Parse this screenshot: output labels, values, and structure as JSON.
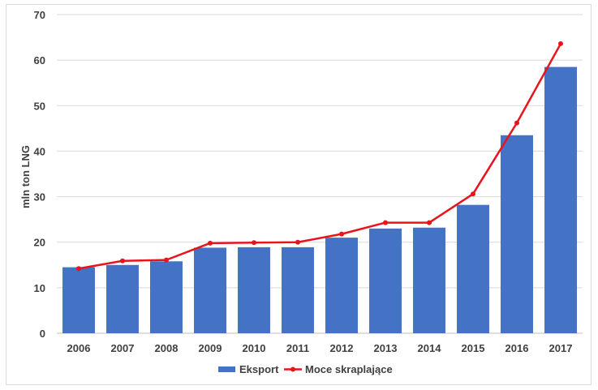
{
  "chart_data": {
    "type": "bar",
    "title": "",
    "xlabel": "",
    "ylabel": "mln ton LNG",
    "ylim": [
      0,
      70
    ],
    "yticks": [
      0,
      10,
      20,
      30,
      40,
      50,
      60,
      70
    ],
    "grid": true,
    "legend_position": "bottom",
    "categories": [
      "2006",
      "2007",
      "2008",
      "2009",
      "2010",
      "2011",
      "2012",
      "2013",
      "2014",
      "2015",
      "2016",
      "2017"
    ],
    "series": [
      {
        "name": "Eksport",
        "kind": "bar",
        "color": "#4472c4",
        "values": [
          14.5,
          15.0,
          15.8,
          18.8,
          18.9,
          18.9,
          21.0,
          23.0,
          23.2,
          28.2,
          43.5,
          58.5
        ]
      },
      {
        "name": "Moce skraplające",
        "kind": "line",
        "color": "#e8141c",
        "values": [
          14.2,
          15.9,
          16.1,
          19.8,
          19.9,
          20.0,
          21.8,
          24.3,
          24.3,
          30.6,
          46.2,
          63.6
        ]
      }
    ]
  }
}
